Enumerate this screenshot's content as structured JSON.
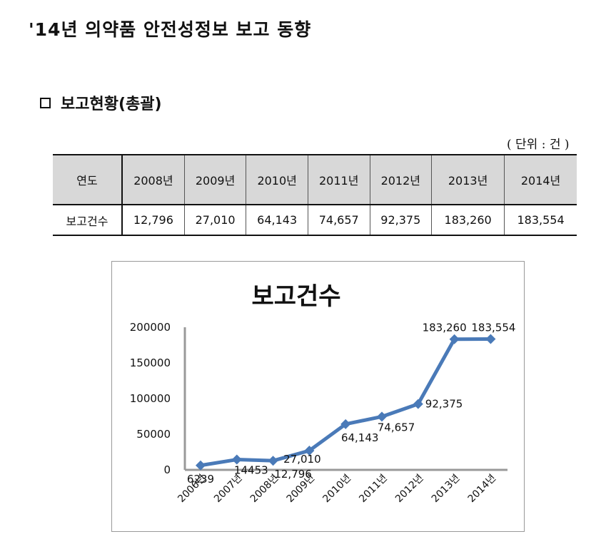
{
  "document": {
    "title": "'14년 의약품 안전성정보 보고 동향",
    "section_heading": "보고현황(총괄)",
    "unit_note": "( 단위 : 건 )"
  },
  "table": {
    "header": [
      "연도",
      "2008년",
      "2009년",
      "2010년",
      "2011년",
      "2012년",
      "2013년",
      "2014년"
    ],
    "row": [
      "보고건수",
      "12,796",
      "27,010",
      "64,143",
      "74,657",
      "92,375",
      "183,260",
      "183,554"
    ]
  },
  "chart_data": {
    "type": "line",
    "title": "보고건수",
    "categories": [
      "2006년",
      "2007년",
      "2008년",
      "2009년",
      "2010년",
      "2011년",
      "2012년",
      "2013년",
      "2014년"
    ],
    "values": [
      6239,
      14453,
      12796,
      27010,
      64143,
      74657,
      92375,
      183260,
      183554
    ],
    "data_labels": [
      "6239",
      "14453",
      "12,796",
      "27,010",
      "64,143",
      "74,657",
      "92,375",
      "183,260",
      "183,554"
    ],
    "y_ticks": [
      "0",
      "50000",
      "100000",
      "150000",
      "200000"
    ],
    "ylim": [
      0,
      200000
    ],
    "line_color": "#4a7ab8",
    "grid": false,
    "legend": "none"
  }
}
